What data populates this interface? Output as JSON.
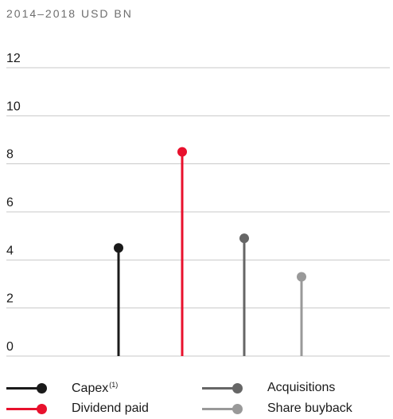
{
  "subtitle": "2014–2018 USD BN",
  "chart_data": {
    "type": "lollipop",
    "title": "",
    "subtitle": "2014–2018 USD BN",
    "xlabel": "",
    "ylabel": "",
    "ylim": [
      0,
      12
    ],
    "yticks": [
      0,
      2,
      4,
      6,
      8,
      10,
      12
    ],
    "grid": true,
    "legend_position": "bottom",
    "categories": [
      "Capex",
      "Dividend paid",
      "Acquisitions",
      "Share buyback"
    ],
    "values": [
      4.5,
      8.5,
      4.9,
      3.3
    ],
    "colors": [
      "#1a1a1a",
      "#e8112d",
      "#666666",
      "#999999"
    ]
  },
  "legend": [
    {
      "label": "Capex",
      "footnote": "(1)",
      "color": "#1a1a1a"
    },
    {
      "label": "Dividend paid",
      "footnote": "",
      "color": "#e8112d"
    },
    {
      "label": "Acquisitions",
      "footnote": "",
      "color": "#666666"
    },
    {
      "label": "Share buyback",
      "footnote": "",
      "color": "#999999"
    }
  ]
}
